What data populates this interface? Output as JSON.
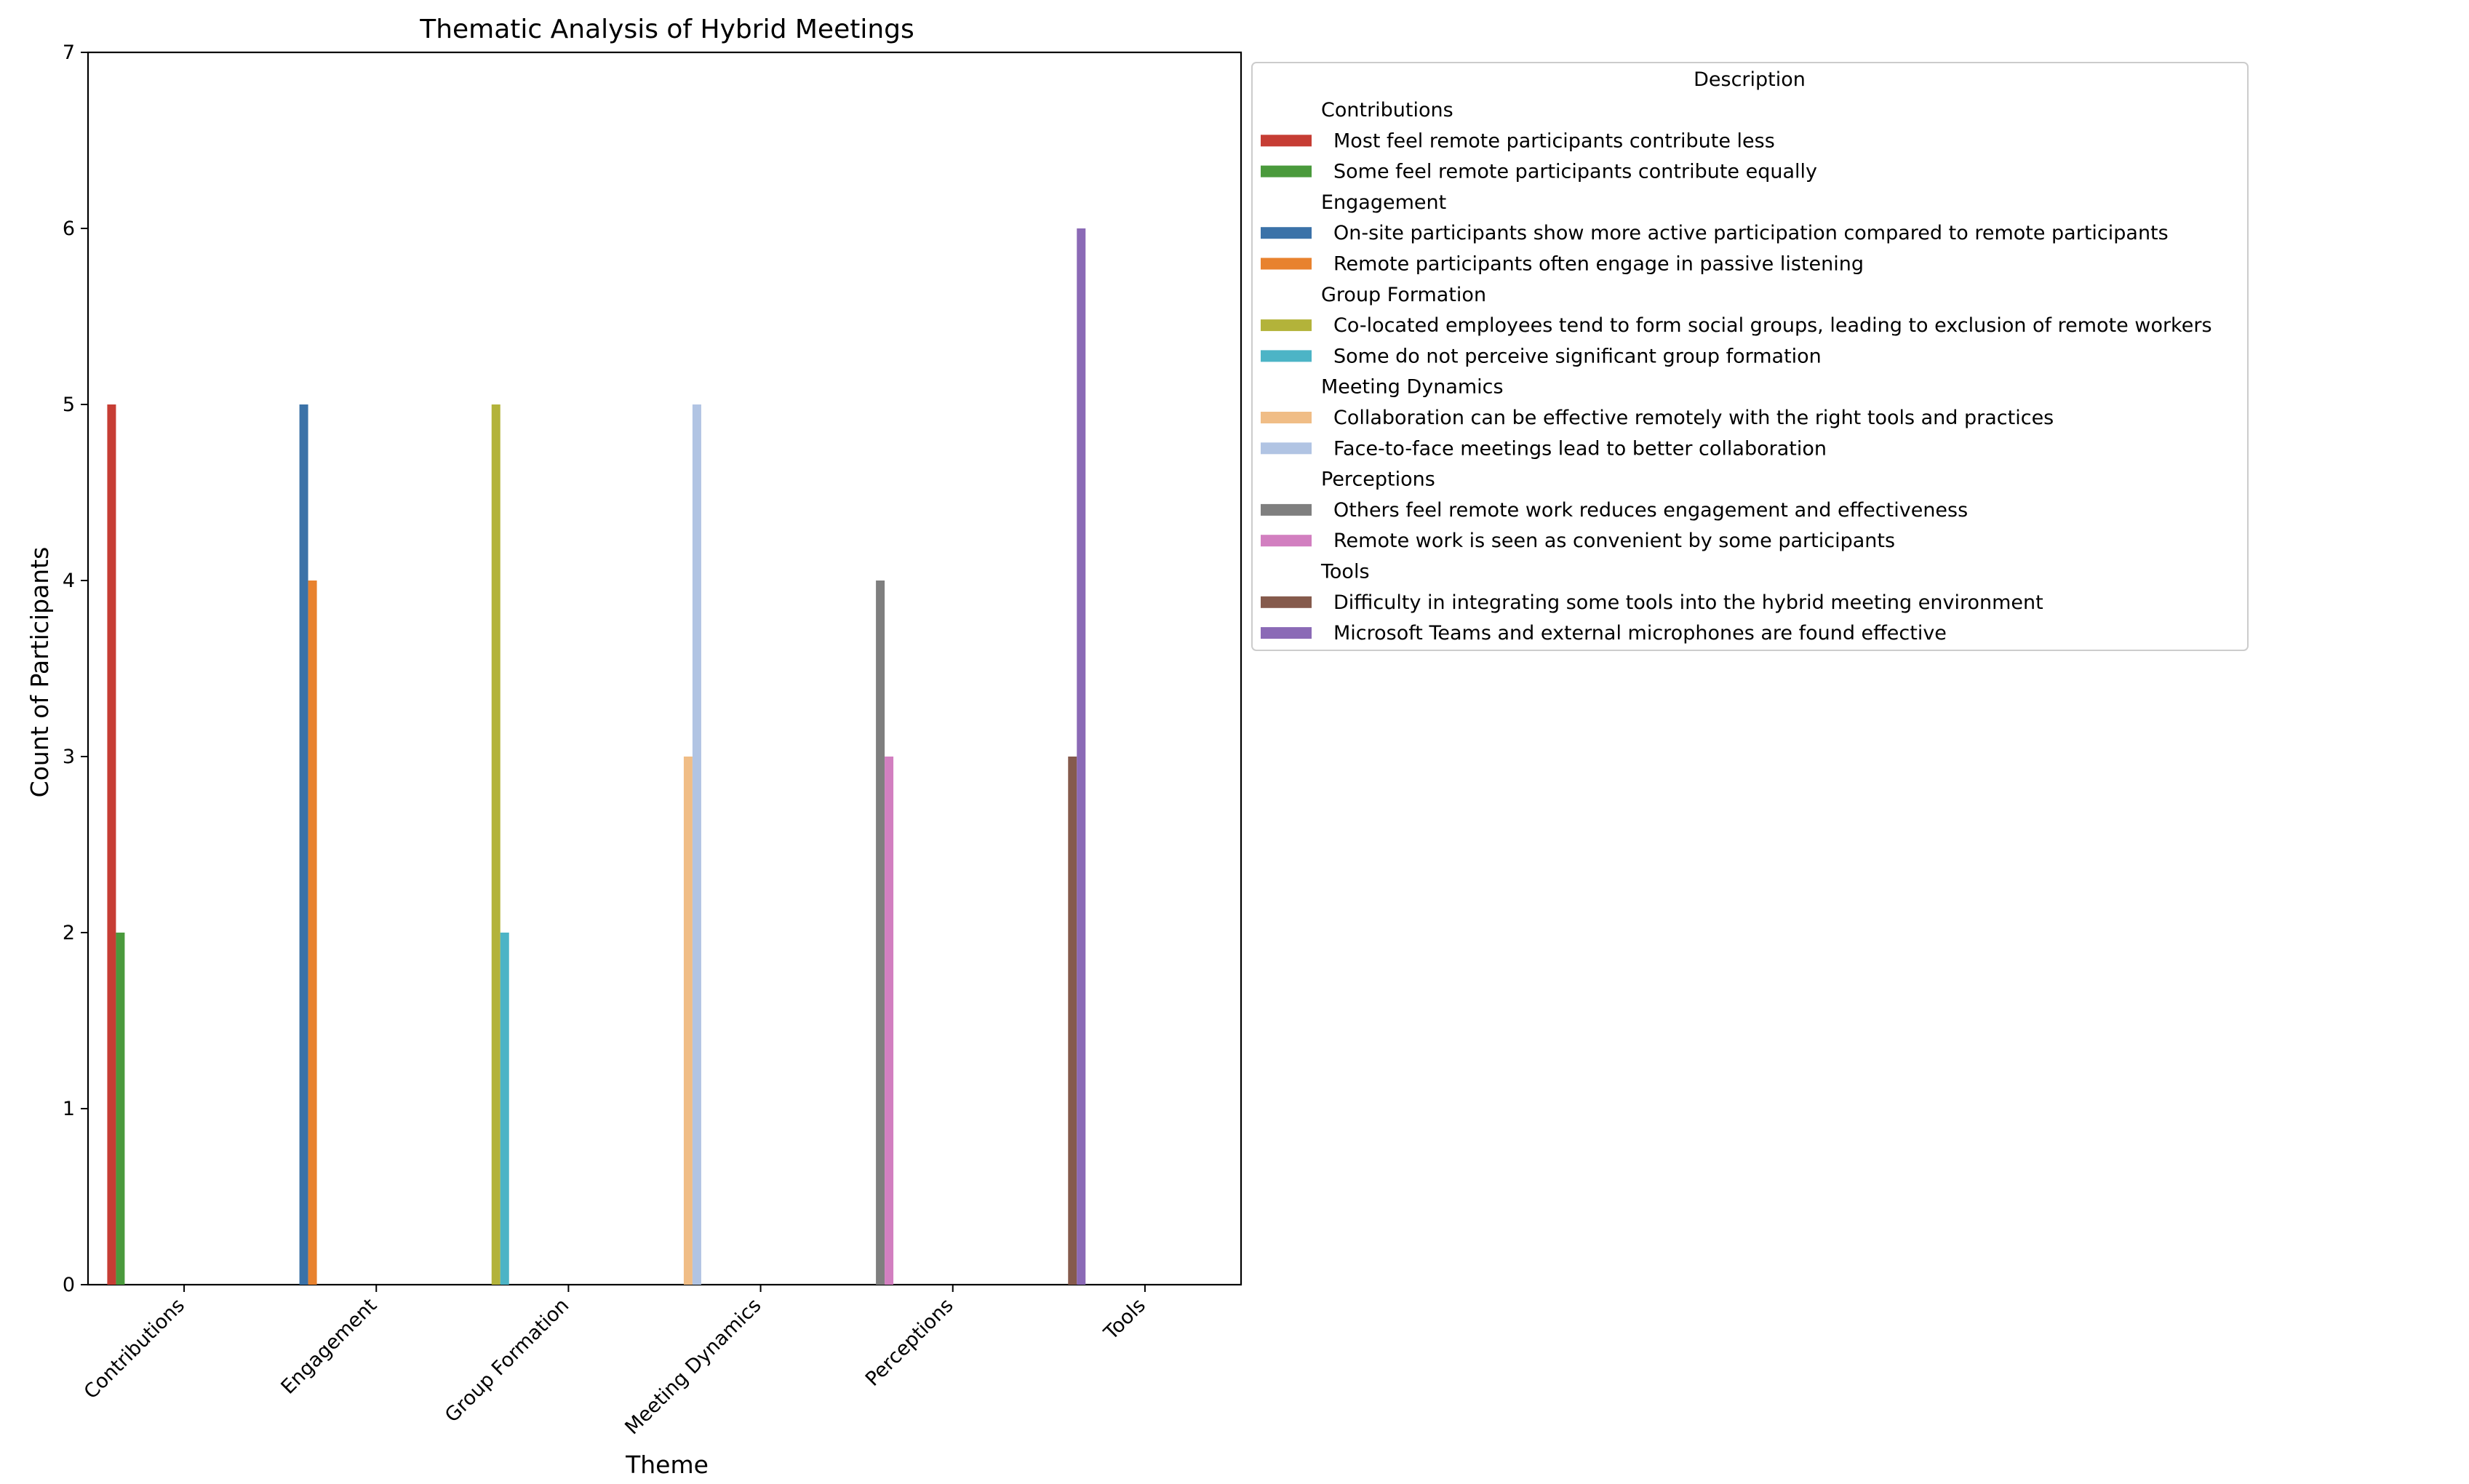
{
  "chart_data": {
    "type": "bar",
    "title": "Thematic Analysis of Hybrid Meetings",
    "xlabel": "Theme",
    "ylabel": "Count of Participants",
    "ylim": [
      0,
      7
    ],
    "yticks": [
      "0",
      "1",
      "2",
      "3",
      "4",
      "5",
      "6",
      "7"
    ],
    "grid": false,
    "categories": [
      "Contributions",
      "Engagement",
      "Group Formation",
      "Meeting Dynamics",
      "Perceptions",
      "Tools"
    ],
    "series": [
      {
        "name": "Most feel remote participants contribute less",
        "group": "Contributions",
        "color": "#c63d34",
        "values": [
          5,
          0,
          0,
          0,
          0,
          0
        ]
      },
      {
        "name": "Some feel remote participants contribute equally",
        "group": "Contributions",
        "color": "#4a9a3c",
        "values": [
          2,
          0,
          0,
          0,
          0,
          0
        ]
      },
      {
        "name": "On-site participants show more active participation compared to remote participants",
        "group": "Engagement",
        "color": "#3b72a8",
        "values": [
          0,
          5,
          0,
          0,
          0,
          0
        ]
      },
      {
        "name": "Remote participants often engage in passive listening",
        "group": "Engagement",
        "color": "#e8822e",
        "values": [
          0,
          4,
          0,
          0,
          0,
          0
        ]
      },
      {
        "name": "Co-located employees tend to form social groups, leading to exclusion of remote workers",
        "group": "Group Formation",
        "color": "#b3b33a",
        "values": [
          0,
          0,
          5,
          0,
          0,
          0
        ]
      },
      {
        "name": "Some do not perceive significant group formation",
        "group": "Group Formation",
        "color": "#4cb4c6",
        "values": [
          0,
          0,
          2,
          0,
          0,
          0
        ]
      },
      {
        "name": "Collaboration can be effective remotely with the right tools and practices",
        "group": "Meeting Dynamics",
        "color": "#f0bd86",
        "values": [
          0,
          0,
          0,
          3,
          0,
          0
        ]
      },
      {
        "name": "Face-to-face meetings lead to better collaboration",
        "group": "Meeting Dynamics",
        "color": "#b1c4e3",
        "values": [
          0,
          0,
          0,
          5,
          0,
          0
        ]
      },
      {
        "name": "Others feel remote work reduces engagement and effectiveness",
        "group": "Perceptions",
        "color": "#7f7f7f",
        "values": [
          0,
          0,
          0,
          0,
          4,
          0
        ]
      },
      {
        "name": "Remote work is seen as convenient by some participants",
        "group": "Perceptions",
        "color": "#d27fc0",
        "values": [
          0,
          0,
          0,
          0,
          3,
          0
        ]
      },
      {
        "name": "Difficulty in integrating some tools into the hybrid meeting environment",
        "group": "Tools",
        "color": "#855a4c",
        "values": [
          0,
          0,
          0,
          0,
          0,
          3
        ]
      },
      {
        "name": "Microsoft Teams and external microphones are found effective",
        "group": "Tools",
        "color": "#8b6ab6",
        "values": [
          0,
          0,
          0,
          0,
          0,
          6
        ]
      }
    ],
    "legend": {
      "title": "Description",
      "placement": "outside-right",
      "group_headers": [
        "Contributions",
        "Engagement",
        "Group Formation",
        "Meeting Dynamics",
        "Perceptions",
        "Tools"
      ]
    }
  }
}
